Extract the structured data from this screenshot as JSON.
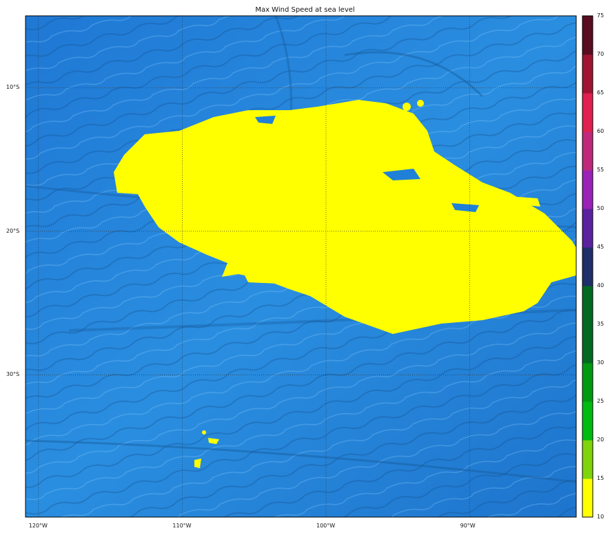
{
  "title": "Max Wind Speed at sea level",
  "map": {
    "lon_ticks": [
      {
        "value": -120,
        "label": "120°W"
      },
      {
        "value": -110,
        "label": "110°W"
      },
      {
        "value": -100,
        "label": "100°W"
      },
      {
        "value": -90,
        "label": "90°W"
      }
    ],
    "lat_ticks": [
      {
        "value": -10,
        "label": "10°S"
      },
      {
        "value": -20,
        "label": "20°S"
      },
      {
        "value": -30,
        "label": "30°S"
      }
    ],
    "lon_range": [
      -120.9,
      -82.6
    ],
    "lat_range": [
      -39.9,
      -5.0
    ],
    "background": "shaded-relief ocean bathymetry",
    "ocean_color": "#1e7fd6",
    "wind_region_color": "#ffff00",
    "gridlines": true
  },
  "colorbar": {
    "levels": [
      "10",
      "15",
      "20",
      "25",
      "30",
      "35",
      "40",
      "45",
      "50",
      "55",
      "60",
      "65",
      "70",
      "75"
    ],
    "colors": [
      "#ffff00",
      "#7fd40a",
      "#00bb10",
      "#009a10",
      "#006a20",
      "#006a20",
      "#1e2f6a",
      "#5b22a0",
      "#9b22b8",
      "#c0287a",
      "#e0204e",
      "#a01432",
      "#5a0c20"
    ]
  }
}
